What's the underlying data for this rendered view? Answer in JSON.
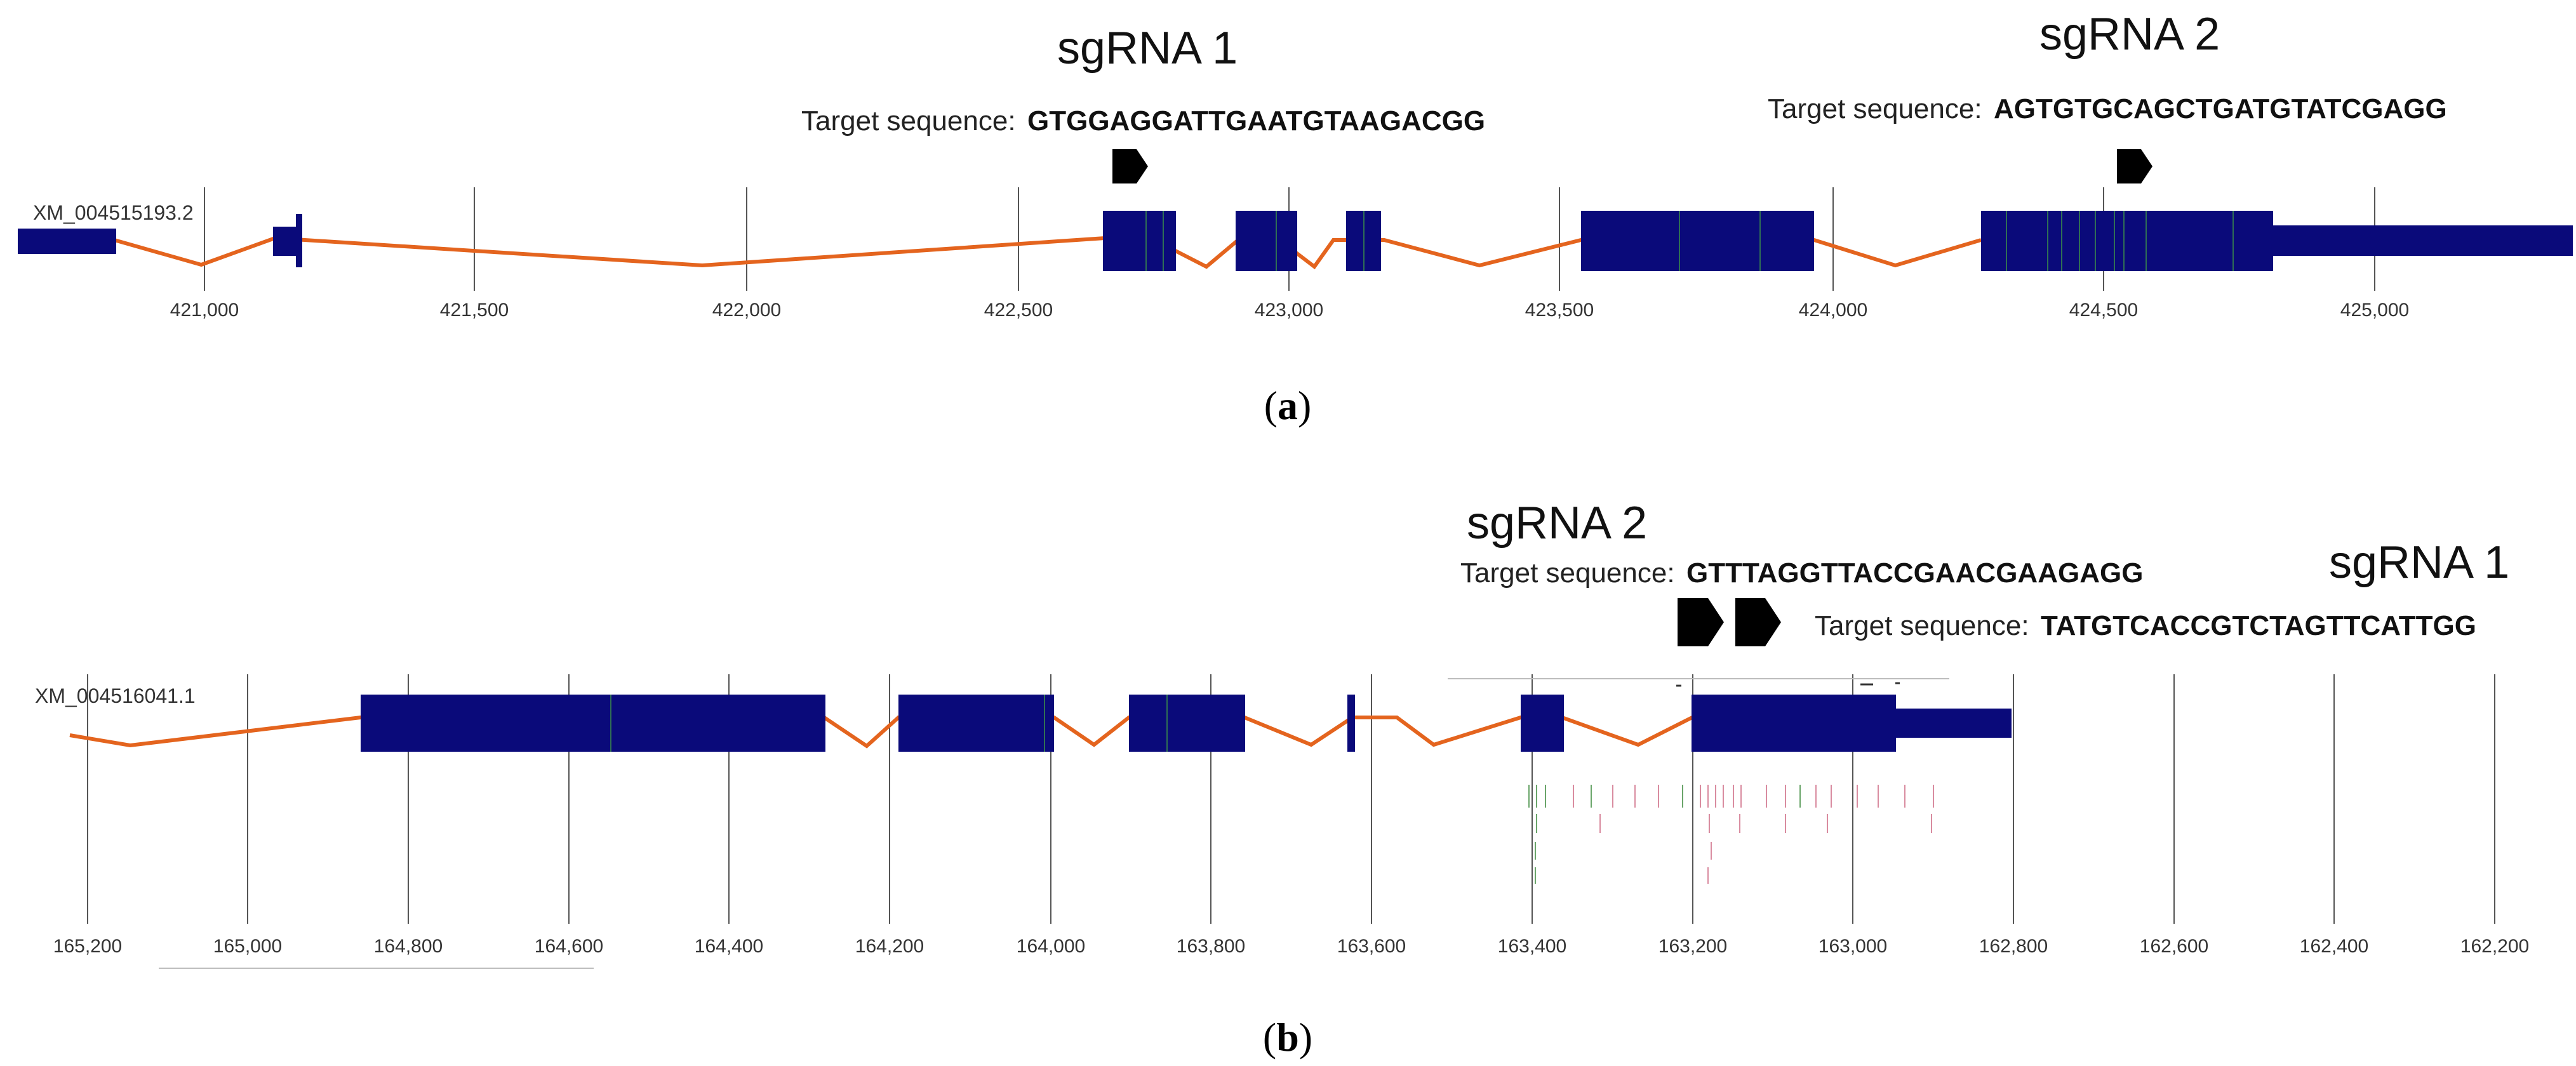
{
  "colors": {
    "exon": "#0a0a7a",
    "intron": "#e4641e",
    "grid": "#555555",
    "background": "#ffffff",
    "guide_marker": "#000000",
    "variant_green": "#6aa56a",
    "variant_pink": "#d98ca0"
  },
  "panel_a": {
    "label_open": "(",
    "label_letter": "a",
    "label_close": ")",
    "accession": "XM_004515193.2",
    "ticks": [
      "421,000",
      "421,500",
      "422,000",
      "422,500",
      "423,000",
      "423,500",
      "424,000",
      "424,500",
      "425,000"
    ],
    "guides": [
      {
        "name": "sgRNA 1",
        "target_label": "Target sequence:",
        "sequence": "GTGGAGGATTGAATGTAAGACGG",
        "marker_icon": "pentagon-arrow-icon"
      },
      {
        "name": "sgRNA 2",
        "target_label": "Target sequence:",
        "sequence": "AGTGTGCAGCTGATGTATCGAGG",
        "marker_icon": "pentagon-arrow-icon"
      }
    ]
  },
  "panel_b": {
    "label_open": "(",
    "label_letter": "b",
    "label_close": ")",
    "accession": "XM_004516041.1",
    "ticks": [
      "165,200",
      "165,000",
      "164,800",
      "164,600",
      "164,400",
      "164,200",
      "164,000",
      "163,800",
      "163,600",
      "163,400",
      "163,200",
      "163,000",
      "162,800",
      "162,600",
      "162,400",
      "162,200"
    ],
    "guides": [
      {
        "name": "sgRNA 2",
        "target_label": "Target sequence:",
        "sequence": "GTTTAGGTTACCGAACGAAGAGG",
        "marker_icon": "pentagon-arrow-icon"
      },
      {
        "name": "sgRNA 1",
        "target_label": "Target sequence:",
        "sequence": "TATGTCACCGTCTAGTTCATTGG",
        "marker_icon": "pentagon-arrow-icon"
      }
    ]
  }
}
